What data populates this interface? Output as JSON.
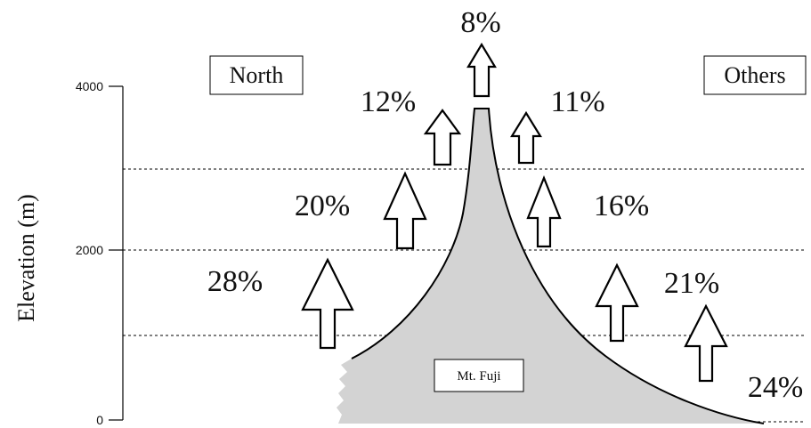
{
  "y_axis": {
    "label": "Elevation (m)",
    "ticks": [
      "4000",
      "2000",
      "0"
    ]
  },
  "legend": {
    "north": "North",
    "others": "Others"
  },
  "mountain": {
    "label": "Mt. Fuji"
  },
  "percentages": {
    "top": "8%",
    "north_3000": "12%",
    "north_2000": "20%",
    "north_1000": "28%",
    "others_3000": "11%",
    "others_2000": "16%",
    "others_1000": "21%",
    "others_0": "24%"
  },
  "colors": {
    "mountain_fill": "#d3d3d3",
    "line": "#000000"
  }
}
